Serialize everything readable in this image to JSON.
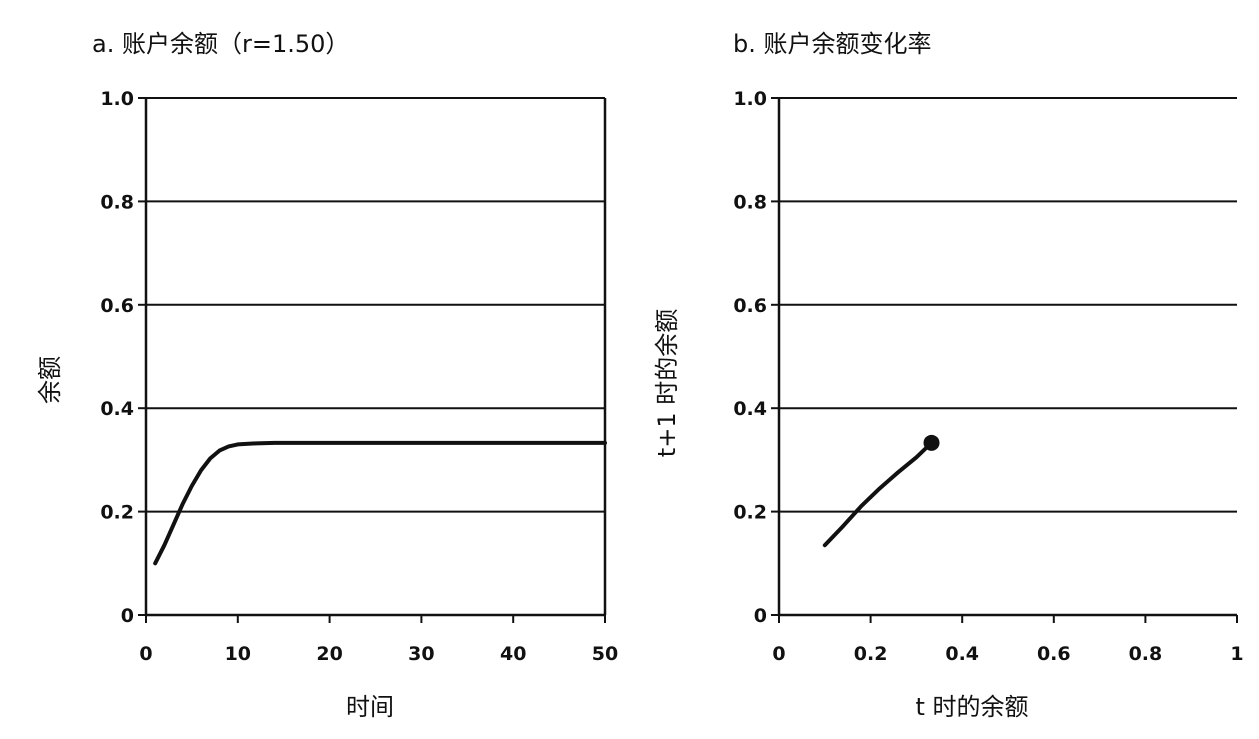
{
  "chart_data": [
    {
      "type": "line",
      "title": "a. 账户余额（r=1.50）",
      "xlabel": "时间",
      "ylabel": "余额",
      "xlim": [
        0,
        50
      ],
      "ylim": [
        0,
        1.0
      ],
      "xticks": [
        "0",
        "10",
        "20",
        "30",
        "40",
        "50"
      ],
      "yticks": [
        "0",
        "0.2",
        "0.4",
        "0.6",
        "0.8",
        "1.0"
      ],
      "grid": "horizontal",
      "series": [
        {
          "x": [
            1,
            2,
            3,
            4,
            5,
            6,
            7,
            8,
            9,
            10,
            12,
            14,
            16,
            20,
            25,
            30,
            35,
            40,
            45,
            50
          ],
          "y": [
            0.1,
            0.135,
            0.175,
            0.215,
            0.25,
            0.28,
            0.303,
            0.318,
            0.326,
            0.33,
            0.332,
            0.333,
            0.333,
            0.333,
            0.333,
            0.333,
            0.333,
            0.333,
            0.333,
            0.333
          ]
        }
      ]
    },
    {
      "type": "line",
      "title": "b. 账户余额变化率",
      "xlabel": "t 时的余额",
      "ylabel": "t+1 时的余额",
      "xlim": [
        0,
        1
      ],
      "ylim": [
        0,
        1.0
      ],
      "xticks": [
        "0",
        "0.2",
        "0.4",
        "0.6",
        "0.8",
        "1"
      ],
      "yticks": [
        "0",
        "0.2",
        "0.4",
        "0.6",
        "0.8",
        "1.0"
      ],
      "grid": "horizontal",
      "series": [
        {
          "x": [
            0.1,
            0.14,
            0.18,
            0.22,
            0.26,
            0.3,
            0.333
          ],
          "y": [
            0.135,
            0.172,
            0.211,
            0.245,
            0.276,
            0.305,
            0.333
          ],
          "end_marker": true
        }
      ]
    }
  ]
}
